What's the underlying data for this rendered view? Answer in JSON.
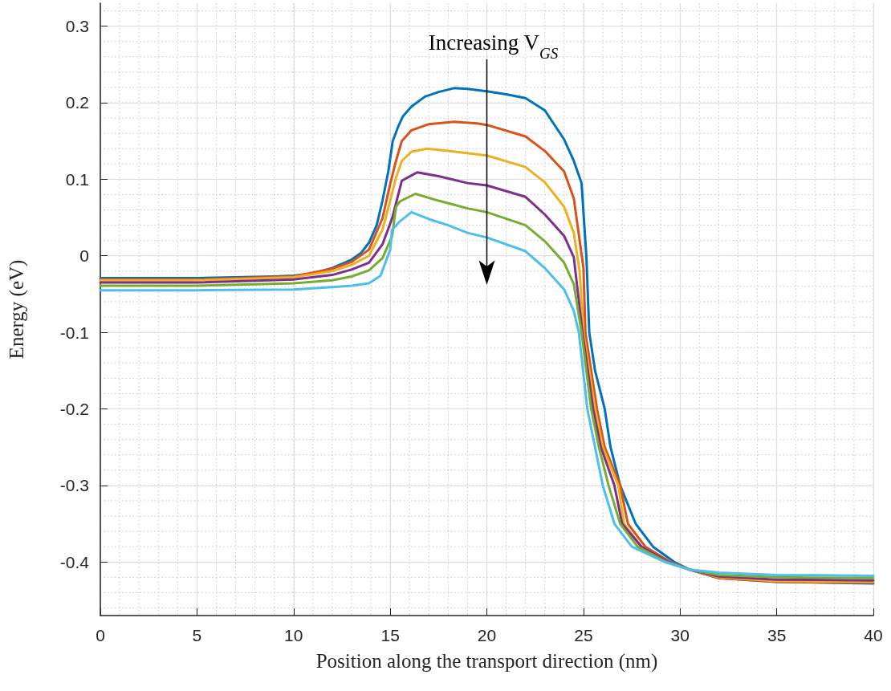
{
  "chart_data": {
    "type": "line",
    "xlabel": "Position along the transport direction (nm)",
    "ylabel": "Energy (eV)",
    "annotations": [
      "Increasing V$_{GS}$"
    ],
    "xlim": [
      0,
      40
    ],
    "xticks": [
      0,
      5,
      10,
      15,
      20,
      25,
      30,
      35,
      40
    ],
    "ylim": [
      -0.47,
      0.33
    ],
    "yticks": [
      -0.4,
      -0.3,
      -0.2,
      -0.1,
      0,
      0.1,
      0.2,
      0.3
    ],
    "grid": true,
    "marker": "none",
    "line_style": "solid",
    "series": [
      {
        "color": "#0072bd",
        "x": [
          0,
          5,
          9,
          10,
          11,
          12,
          13,
          13.5,
          13.9,
          14.3,
          14.6,
          14.9,
          15.13,
          15.4,
          15.65,
          16.1,
          16.8,
          17.5,
          18.3,
          19,
          20,
          21,
          22,
          23,
          24,
          24.5,
          24.9,
          25.15,
          25.3,
          25.6,
          26.1,
          26.4,
          26.9,
          27.7,
          28.6,
          29.7,
          30.5,
          32,
          35,
          40
        ],
        "values": [
          -0.029,
          -0.029,
          -0.027,
          -0.026,
          -0.023,
          -0.016,
          -0.005,
          0.004,
          0.017,
          0.04,
          0.072,
          0.11,
          0.15,
          0.168,
          0.182,
          0.195,
          0.208,
          0.214,
          0.219,
          0.218,
          0.215,
          0.211,
          0.206,
          0.19,
          0.152,
          0.124,
          0.095,
          0.0,
          -0.1,
          -0.15,
          -0.2,
          -0.25,
          -0.3,
          -0.35,
          -0.38,
          -0.4,
          -0.41,
          -0.421,
          -0.426,
          -0.428
        ]
      },
      {
        "color": "#d95319",
        "x": [
          0,
          5,
          10,
          12,
          13,
          13.9,
          14.6,
          15,
          15.3,
          15.6,
          16.1,
          17,
          18.3,
          19.5,
          20,
          22,
          23,
          24,
          24.5,
          25,
          25.1,
          25.7,
          26.1,
          26.9,
          27.3,
          28.2,
          29.5,
          30.5,
          32,
          35,
          40
        ],
        "values": [
          -0.031,
          -0.031,
          -0.027,
          -0.017,
          -0.008,
          0.008,
          0.049,
          0.094,
          0.124,
          0.15,
          0.164,
          0.172,
          0.175,
          0.173,
          0.171,
          0.156,
          0.137,
          0.11,
          0.075,
          -0.016,
          -0.1,
          -0.2,
          -0.25,
          -0.3,
          -0.35,
          -0.38,
          -0.4,
          -0.41,
          -0.421,
          -0.426,
          -0.427
        ]
      },
      {
        "color": "#edb120",
        "x": [
          0,
          5,
          10,
          12,
          13,
          13.9,
          14.6,
          15,
          15.3,
          15.6,
          16.1,
          16.9,
          18,
          20,
          22,
          23,
          24,
          24.5,
          24.8,
          25,
          25.6,
          26,
          26.8,
          27.1,
          28,
          29.4,
          30.5,
          32,
          35,
          40
        ],
        "values": [
          -0.032,
          -0.032,
          -0.028,
          -0.02,
          -0.012,
          0.0,
          0.034,
          0.072,
          0.102,
          0.124,
          0.136,
          0.14,
          0.137,
          0.131,
          0.116,
          0.096,
          0.064,
          0.03,
          -0.02,
          -0.1,
          -0.2,
          -0.25,
          -0.3,
          -0.35,
          -0.38,
          -0.4,
          -0.41,
          -0.42,
          -0.425,
          -0.426
        ]
      },
      {
        "color": "#7e2f8e",
        "x": [
          0,
          5,
          10,
          12,
          13,
          13.9,
          14.6,
          15.1,
          15.6,
          16.1,
          16.4,
          17.5,
          19,
          20,
          22,
          23,
          24,
          24.5,
          24.95,
          25.5,
          25.9,
          26.6,
          27,
          28,
          29.4,
          30.5,
          32,
          35,
          40
        ],
        "values": [
          -0.035,
          -0.035,
          -0.031,
          -0.025,
          -0.018,
          -0.009,
          0.015,
          0.049,
          0.098,
          0.105,
          0.109,
          0.104,
          0.095,
          0.092,
          0.077,
          0.054,
          0.026,
          -0.002,
          -0.1,
          -0.2,
          -0.25,
          -0.3,
          -0.35,
          -0.38,
          -0.4,
          -0.41,
          -0.419,
          -0.423,
          -0.424
        ]
      },
      {
        "color": "#77ac30",
        "x": [
          0,
          5,
          10,
          12,
          13,
          13.9,
          14.6,
          15.1,
          15.3,
          15.5,
          16.3,
          17.5,
          19,
          20,
          22,
          23,
          24,
          24.5,
          24.9,
          25.4,
          25.8,
          26.3,
          26.9,
          27.8,
          29.3,
          30.5,
          32,
          35,
          40
        ],
        "values": [
          -0.039,
          -0.039,
          -0.036,
          -0.032,
          -0.027,
          -0.019,
          -0.003,
          0.026,
          0.064,
          0.071,
          0.081,
          0.072,
          0.062,
          0.057,
          0.04,
          0.019,
          -0.009,
          -0.037,
          -0.1,
          -0.2,
          -0.25,
          -0.3,
          -0.35,
          -0.38,
          -0.4,
          -0.41,
          -0.417,
          -0.42,
          -0.421
        ]
      },
      {
        "color": "#4dbeee",
        "x": [
          0,
          5,
          10,
          12,
          13,
          13.9,
          14.5,
          15,
          15.1,
          15.5,
          16.1,
          17,
          18,
          19,
          20,
          22,
          23,
          24,
          24.5,
          24.76,
          25.2,
          25.6,
          26,
          26.6,
          27.5,
          29.2,
          30.5,
          32,
          35,
          40
        ],
        "values": [
          -0.045,
          -0.045,
          -0.044,
          -0.041,
          -0.039,
          -0.036,
          -0.026,
          0.008,
          0.034,
          0.045,
          0.057,
          0.048,
          0.04,
          0.03,
          0.024,
          0.006,
          -0.016,
          -0.044,
          -0.072,
          -0.1,
          -0.2,
          -0.25,
          -0.3,
          -0.35,
          -0.38,
          -0.4,
          -0.41,
          -0.414,
          -0.417,
          -0.418
        ]
      }
    ]
  }
}
